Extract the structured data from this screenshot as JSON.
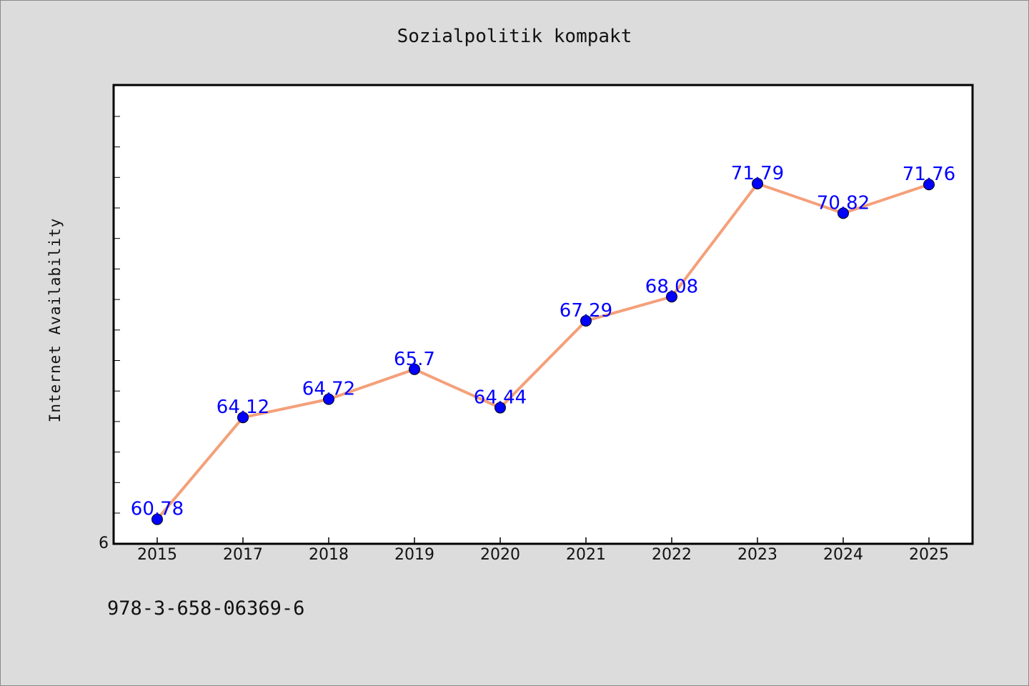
{
  "chart_data": {
    "type": "line",
    "title": "Sozialpolitik kompakt",
    "xlabel": "",
    "ylabel": "Internet Availability",
    "categories": [
      "2015",
      "2017",
      "2018",
      "2019",
      "2020",
      "2021",
      "2022",
      "2023",
      "2024",
      "2025"
    ],
    "series": [
      {
        "values": [
          60.78,
          64.12,
          64.72,
          65.7,
          64.44,
          67.29,
          68.08,
          71.79,
          70.82,
          71.76
        ]
      }
    ],
    "data_labels": [
      "60.78",
      "64.12",
      "64.72",
      "65.7",
      "64.44",
      "67.29",
      "68.08",
      "71.79",
      "70.82",
      "71.76"
    ],
    "y_tick_labels": [
      "6"
    ],
    "ylim": [
      60.0,
      75.0
    ],
    "grid": false,
    "line_color": "#f4a07a",
    "marker_color": "#0000ff",
    "label_color": "#0000ff"
  },
  "footer": {
    "isbn": "978-3-658-06369-6"
  }
}
